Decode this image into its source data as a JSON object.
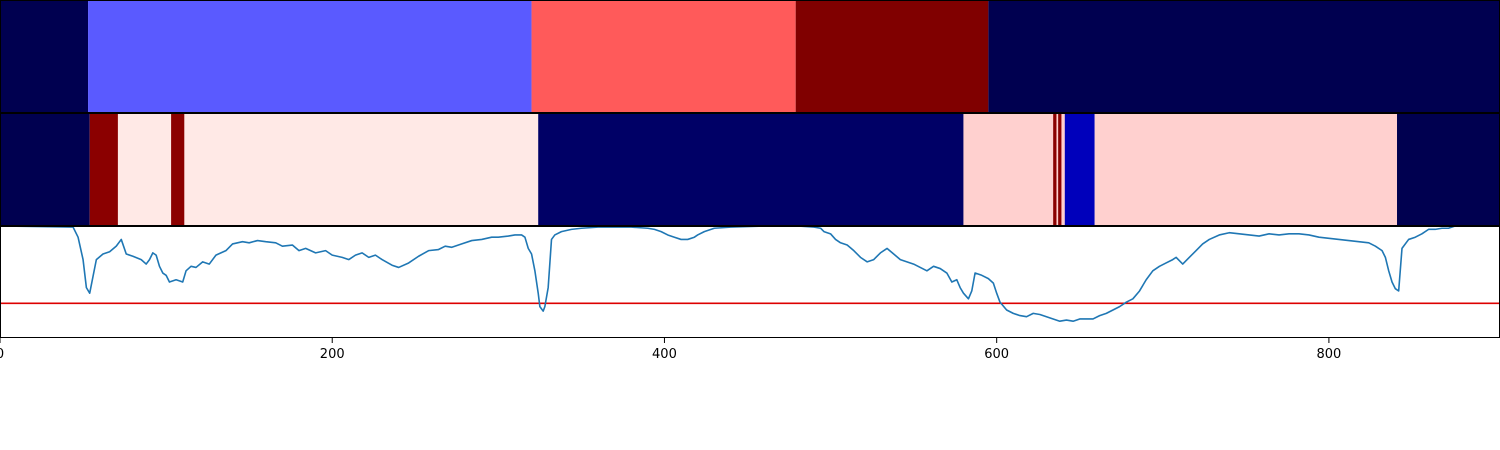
{
  "chart_data": [
    {
      "type": "heatmap",
      "xlim": [
        0,
        903
      ],
      "colors": {
        "navy": "#000050",
        "blue_light": "#5a5aff",
        "red_light": "#ff5a5a",
        "maroon": "#800000"
      },
      "segments": [
        {
          "x0": 0,
          "x1": 53,
          "color": "navy"
        },
        {
          "x0": 53,
          "x1": 320,
          "color": "blue_light"
        },
        {
          "x0": 320,
          "x1": 479,
          "color": "red_light"
        },
        {
          "x0": 479,
          "x1": 595,
          "color": "maroon"
        },
        {
          "x0": 595,
          "x1": 903,
          "color": "navy"
        }
      ]
    },
    {
      "type": "heatmap",
      "xlim": [
        0,
        903
      ],
      "colors": {
        "navy": "#000050",
        "dark_red": "#8b0000",
        "very_light_pink": "#ffe9e6",
        "dark_blue": "#000066",
        "light_pink": "#ffd0cf",
        "blue": "#0000bb"
      },
      "segments": [
        {
          "x0": 0,
          "x1": 54,
          "color": "navy"
        },
        {
          "x0": 54,
          "x1": 71,
          "color": "dark_red"
        },
        {
          "x0": 71,
          "x1": 103,
          "color": "very_light_pink"
        },
        {
          "x0": 103,
          "x1": 111,
          "color": "dark_red"
        },
        {
          "x0": 111,
          "x1": 324,
          "color": "very_light_pink"
        },
        {
          "x0": 324,
          "x1": 580,
          "color": "dark_blue"
        },
        {
          "x0": 580,
          "x1": 634,
          "color": "light_pink"
        },
        {
          "x0": 634,
          "x1": 636,
          "color": "dark_red"
        },
        {
          "x0": 636,
          "x1": 637,
          "color": "light_pink"
        },
        {
          "x0": 637,
          "x1": 639,
          "color": "dark_red"
        },
        {
          "x0": 639,
          "x1": 641,
          "color": "light_pink"
        },
        {
          "x0": 641,
          "x1": 659,
          "color": "blue"
        },
        {
          "x0": 659,
          "x1": 841,
          "color": "light_pink"
        },
        {
          "x0": 841,
          "x1": 903,
          "color": "navy"
        }
      ]
    },
    {
      "type": "line",
      "xlim": [
        0,
        903
      ],
      "ylim": [
        0,
        100
      ],
      "x_ticks": [
        0,
        200,
        400,
        600,
        800
      ],
      "x_tick_labels": [
        "0",
        "200",
        "400",
        "600",
        "800"
      ],
      "line_color": "#1f77b4",
      "threshold": {
        "value": 31,
        "color": "#dd0000"
      },
      "points": [
        [
          0,
          100
        ],
        [
          44,
          99
        ],
        [
          47,
          90
        ],
        [
          50,
          70
        ],
        [
          52,
          45
        ],
        [
          54,
          40
        ],
        [
          56,
          55
        ],
        [
          58,
          70
        ],
        [
          62,
          75
        ],
        [
          66,
          77
        ],
        [
          70,
          82
        ],
        [
          73,
          88
        ],
        [
          76,
          75
        ],
        [
          80,
          73
        ],
        [
          85,
          70
        ],
        [
          88,
          66
        ],
        [
          90,
          70
        ],
        [
          92,
          76
        ],
        [
          94,
          74
        ],
        [
          96,
          64
        ],
        [
          98,
          58
        ],
        [
          100,
          56
        ],
        [
          102,
          50
        ],
        [
          106,
          52
        ],
        [
          110,
          50
        ],
        [
          112,
          60
        ],
        [
          115,
          64
        ],
        [
          118,
          63
        ],
        [
          122,
          68
        ],
        [
          126,
          66
        ],
        [
          130,
          74
        ],
        [
          136,
          78
        ],
        [
          140,
          84
        ],
        [
          146,
          86
        ],
        [
          150,
          85
        ],
        [
          155,
          87
        ],
        [
          160,
          86
        ],
        [
          166,
          85
        ],
        [
          170,
          82
        ],
        [
          176,
          83
        ],
        [
          180,
          78
        ],
        [
          184,
          80
        ],
        [
          190,
          76
        ],
        [
          196,
          78
        ],
        [
          200,
          74
        ],
        [
          206,
          72
        ],
        [
          210,
          70
        ],
        [
          214,
          74
        ],
        [
          218,
          76
        ],
        [
          222,
          72
        ],
        [
          226,
          74
        ],
        [
          230,
          70
        ],
        [
          236,
          65
        ],
        [
          240,
          63
        ],
        [
          246,
          67
        ],
        [
          252,
          73
        ],
        [
          258,
          78
        ],
        [
          264,
          79
        ],
        [
          268,
          82
        ],
        [
          272,
          81
        ],
        [
          278,
          84
        ],
        [
          284,
          87
        ],
        [
          290,
          88
        ],
        [
          296,
          90
        ],
        [
          300,
          90
        ],
        [
          306,
          91
        ],
        [
          310,
          92
        ],
        [
          314,
          92
        ],
        [
          316,
          90
        ],
        [
          318,
          80
        ],
        [
          320,
          75
        ],
        [
          322,
          60
        ],
        [
          324,
          40
        ],
        [
          325,
          28
        ],
        [
          327,
          24
        ],
        [
          328,
          28
        ],
        [
          330,
          45
        ],
        [
          332,
          88
        ],
        [
          334,
          92
        ],
        [
          338,
          95
        ],
        [
          344,
          97
        ],
        [
          350,
          98
        ],
        [
          360,
          99
        ],
        [
          370,
          99
        ],
        [
          380,
          99
        ],
        [
          390,
          98
        ],
        [
          394,
          97
        ],
        [
          398,
          95
        ],
        [
          402,
          92
        ],
        [
          406,
          90
        ],
        [
          410,
          88
        ],
        [
          414,
          88
        ],
        [
          418,
          90
        ],
        [
          420,
          92
        ],
        [
          424,
          95
        ],
        [
          430,
          98
        ],
        [
          440,
          99
        ],
        [
          460,
          100
        ],
        [
          480,
          100
        ],
        [
          490,
          99
        ],
        [
          494,
          98
        ],
        [
          496,
          95
        ],
        [
          500,
          93
        ],
        [
          503,
          88
        ],
        [
          506,
          85
        ],
        [
          510,
          83
        ],
        [
          514,
          78
        ],
        [
          518,
          72
        ],
        [
          522,
          68
        ],
        [
          526,
          70
        ],
        [
          530,
          76
        ],
        [
          534,
          80
        ],
        [
          538,
          75
        ],
        [
          542,
          70
        ],
        [
          546,
          68
        ],
        [
          550,
          66
        ],
        [
          554,
          63
        ],
        [
          558,
          60
        ],
        [
          562,
          64
        ],
        [
          566,
          62
        ],
        [
          570,
          58
        ],
        [
          573,
          50
        ],
        [
          576,
          52
        ],
        [
          578,
          45
        ],
        [
          580,
          40
        ],
        [
          583,
          35
        ],
        [
          585,
          42
        ],
        [
          587,
          58
        ],
        [
          591,
          56
        ],
        [
          595,
          53
        ],
        [
          598,
          49
        ],
        [
          600,
          40
        ],
        [
          602,
          32
        ],
        [
          606,
          25
        ],
        [
          610,
          22
        ],
        [
          614,
          20
        ],
        [
          618,
          19
        ],
        [
          622,
          22
        ],
        [
          626,
          21
        ],
        [
          630,
          19
        ],
        [
          634,
          17
        ],
        [
          638,
          15
        ],
        [
          642,
          16
        ],
        [
          646,
          15
        ],
        [
          650,
          17
        ],
        [
          654,
          17
        ],
        [
          658,
          17
        ],
        [
          662,
          20
        ],
        [
          666,
          22
        ],
        [
          670,
          25
        ],
        [
          674,
          28
        ],
        [
          678,
          32
        ],
        [
          682,
          35
        ],
        [
          686,
          42
        ],
        [
          690,
          52
        ],
        [
          694,
          60
        ],
        [
          698,
          64
        ],
        [
          702,
          67
        ],
        [
          706,
          70
        ],
        [
          708,
          72
        ],
        [
          712,
          66
        ],
        [
          716,
          72
        ],
        [
          720,
          78
        ],
        [
          724,
          84
        ],
        [
          728,
          88
        ],
        [
          734,
          92
        ],
        [
          740,
          94
        ],
        [
          746,
          93
        ],
        [
          752,
          92
        ],
        [
          758,
          91
        ],
        [
          764,
          93
        ],
        [
          770,
          92
        ],
        [
          776,
          93
        ],
        [
          782,
          93
        ],
        [
          788,
          92
        ],
        [
          794,
          90
        ],
        [
          800,
          89
        ],
        [
          806,
          88
        ],
        [
          812,
          87
        ],
        [
          818,
          86
        ],
        [
          824,
          85
        ],
        [
          828,
          82
        ],
        [
          832,
          78
        ],
        [
          834,
          72
        ],
        [
          836,
          60
        ],
        [
          838,
          50
        ],
        [
          840,
          44
        ],
        [
          842,
          42
        ],
        [
          844,
          80
        ],
        [
          848,
          88
        ],
        [
          852,
          90
        ],
        [
          856,
          93
        ],
        [
          860,
          97
        ],
        [
          864,
          97
        ],
        [
          868,
          98
        ],
        [
          872,
          98
        ],
        [
          876,
          100
        ]
      ]
    }
  ]
}
